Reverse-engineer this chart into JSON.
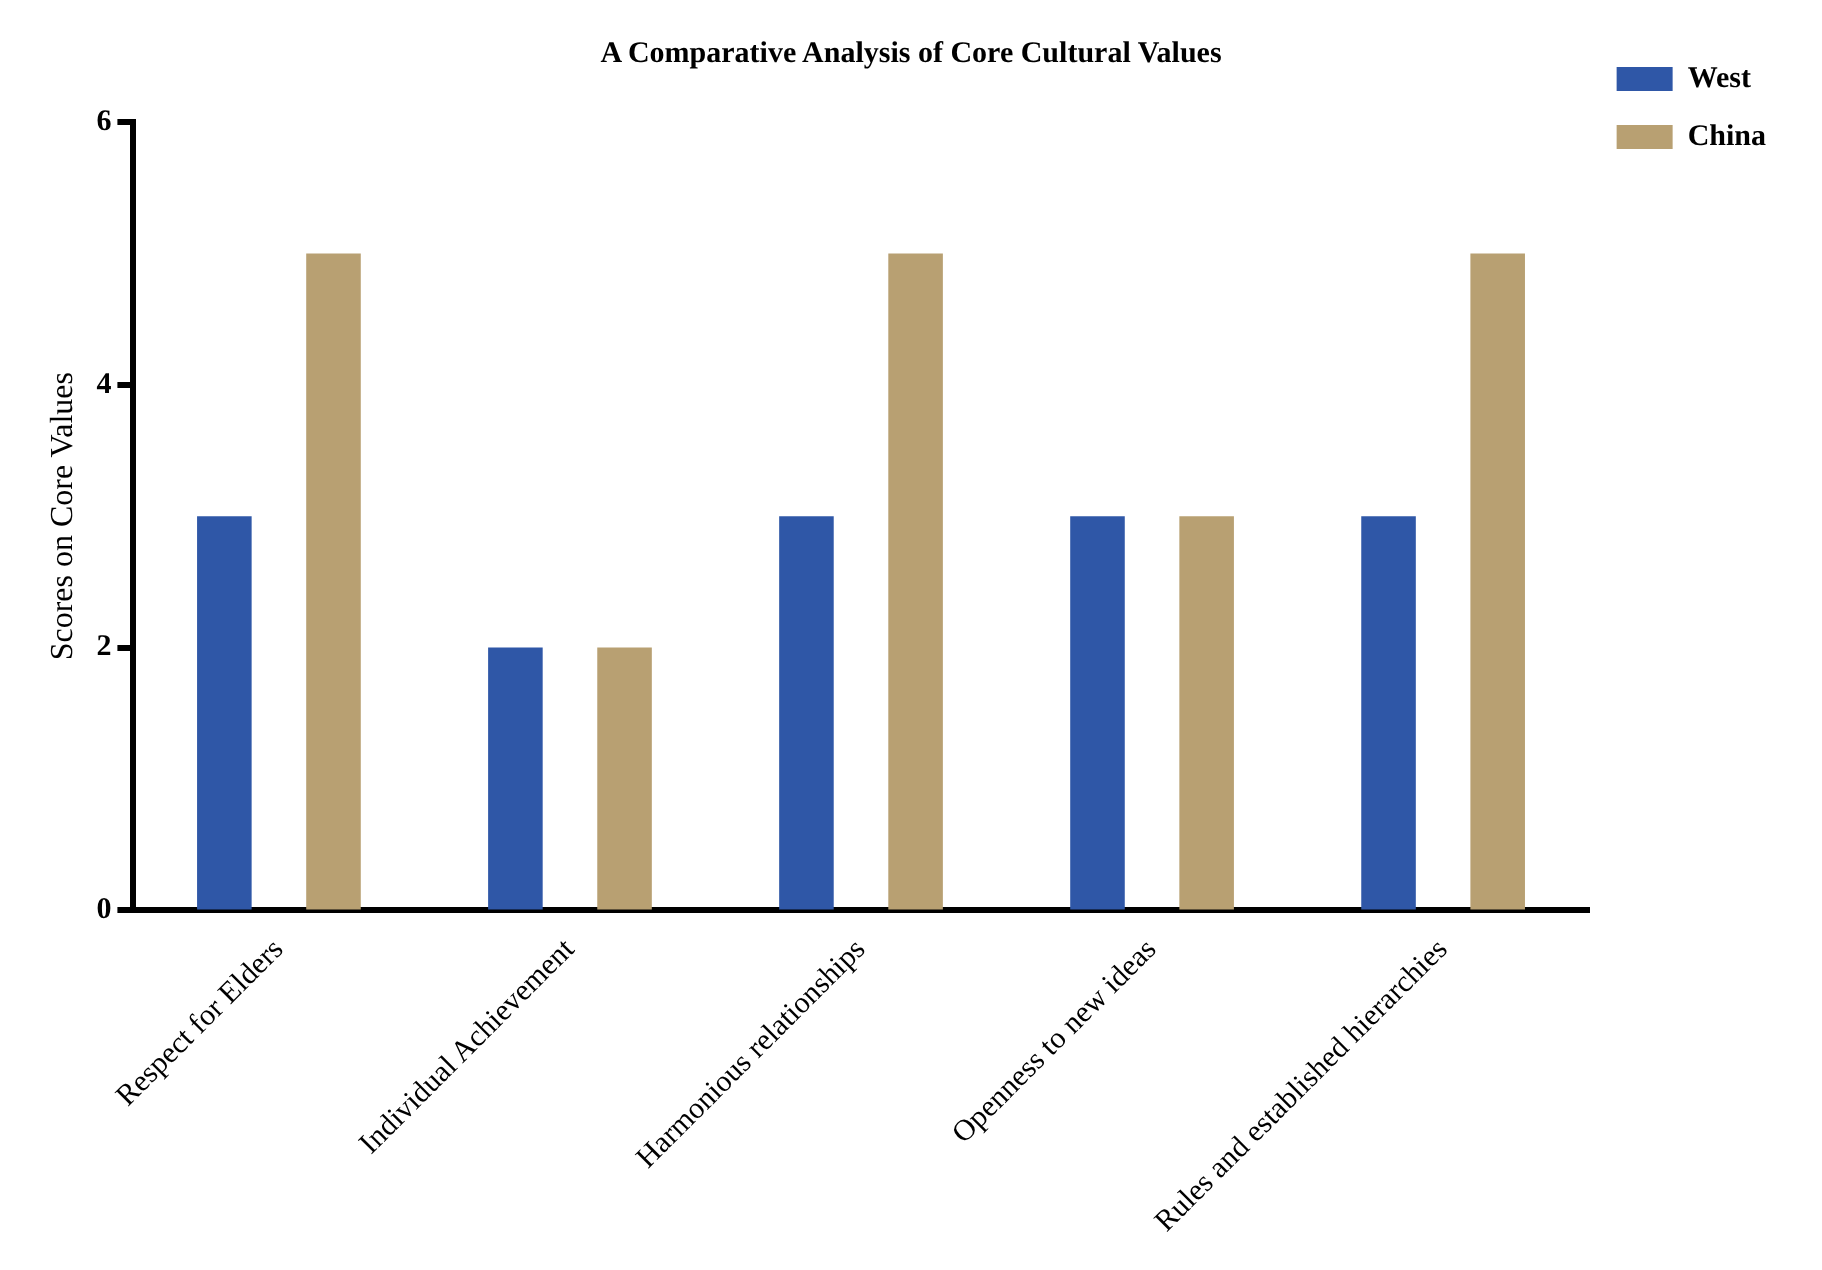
{
  "chart_data": {
    "type": "bar",
    "title": "A Comparative Analysis of Core Cultural Values",
    "ylabel": "Scores on Core Values",
    "categories": [
      "Respect for Elders",
      "Individual Achievement",
      "Harmonious relationships",
      "Openness to new ideas",
      "Rules and established hierarchies"
    ],
    "series": [
      {
        "name": "West",
        "color": "#2f57a7",
        "values": [
          3,
          2,
          3,
          3,
          3
        ]
      },
      {
        "name": "China",
        "color": "#b8a072",
        "values": [
          5,
          2,
          5,
          3,
          5
        ]
      }
    ],
    "ylim": [
      0,
      6
    ],
    "yticks": [
      0,
      2,
      4,
      6
    ],
    "grid": false,
    "legend": "top right"
  }
}
